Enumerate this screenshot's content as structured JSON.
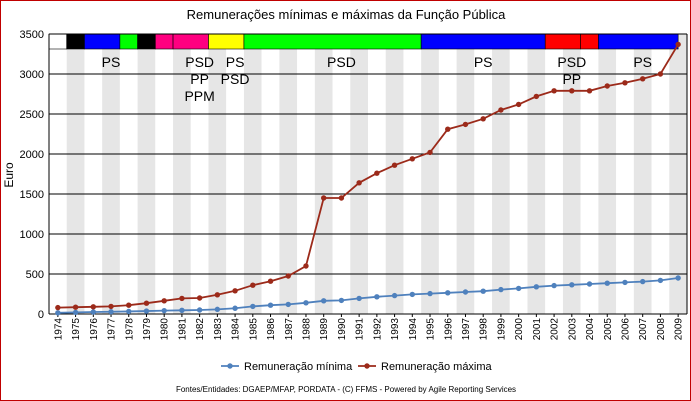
{
  "chart_data": {
    "type": "line",
    "title": "Remunerações mínimas e máximas da Função Pública",
    "ylabel": "Euro",
    "xlabel": "",
    "ylim": [
      0,
      3500
    ],
    "yticks": [
      "0",
      "500",
      "1000",
      "1500",
      "2000",
      "2500",
      "3000",
      "3500"
    ],
    "x": [
      "1974",
      "1975",
      "1976",
      "1977",
      "1978",
      "1979",
      "1980",
      "1981",
      "1982",
      "1983",
      "1984",
      "1985",
      "1986",
      "1987",
      "1988",
      "1989",
      "1990",
      "1991",
      "1992",
      "1993",
      "1994",
      "1995",
      "1996",
      "1997",
      "1998",
      "1999",
      "2000",
      "2001",
      "2002",
      "2003",
      "2004",
      "2005",
      "2006",
      "2007",
      "2008",
      "2009"
    ],
    "series": [
      {
        "name": "Remuneração mínima",
        "color": "#4f81bd",
        "values": [
          15,
          20,
          25,
          28,
          32,
          37,
          42,
          46,
          50,
          58,
          72,
          95,
          110,
          120,
          140,
          165,
          170,
          195,
          215,
          230,
          245,
          255,
          265,
          275,
          285,
          305,
          320,
          340,
          355,
          365,
          375,
          385,
          395,
          405,
          420,
          450
        ]
      },
      {
        "name": "Remuneração máxima",
        "color": "#9c2a1a",
        "values": [
          80,
          85,
          90,
          95,
          110,
          135,
          165,
          195,
          200,
          240,
          290,
          360,
          410,
          475,
          600,
          1450,
          1450,
          1640,
          1760,
          1860,
          1940,
          2020,
          2310,
          2370,
          2440,
          2550,
          2620,
          2720,
          2790,
          2790,
          2790,
          2850,
          2890,
          2940,
          3000,
          3370
        ]
      }
    ],
    "grid": "alternating vertical bands",
    "legend": "bottom",
    "party_bands": [
      {
        "start": "1974",
        "end": "1975",
        "color": "#ffffff"
      },
      {
        "start": "1975",
        "end": "1976",
        "color": "#000000"
      },
      {
        "start": "1976",
        "end": "1978",
        "color": "#0000ff"
      },
      {
        "start": "1978",
        "end": "1979",
        "color": "#00ff00"
      },
      {
        "start": "1979",
        "end": "1980",
        "color": "#000000"
      },
      {
        "start": "1980",
        "end": "1981",
        "color": "#ff0080"
      },
      {
        "start": "1981",
        "end": "1983",
        "color": "#ff0080"
      },
      {
        "start": "1983",
        "end": "1985",
        "color": "#ffff00"
      },
      {
        "start": "1985",
        "end": "1995",
        "color": "#00ff00"
      },
      {
        "start": "1995",
        "end": "2002",
        "color": "#0000ff"
      },
      {
        "start": "2002",
        "end": "2004",
        "color": "#ff0000"
      },
      {
        "start": "2004",
        "end": "2005",
        "color": "#ff0000"
      },
      {
        "start": "2005",
        "end": "2009.5",
        "color": "#0000ff"
      }
    ],
    "party_labels": [
      {
        "lines": [
          "PS"
        ],
        "x": "1977"
      },
      {
        "lines": [
          "PSD",
          "PP",
          "PPM"
        ],
        "x": "1982"
      },
      {
        "lines": [
          "PS",
          "PSD"
        ],
        "x": "1984"
      },
      {
        "lines": [
          "PSD"
        ],
        "x": "1990"
      },
      {
        "lines": [
          "PS"
        ],
        "x": "1998"
      },
      {
        "lines": [
          "PSD",
          "PP"
        ],
        "x": "2003"
      },
      {
        "lines": [
          "PS"
        ],
        "x": "2007"
      }
    ]
  },
  "footer": {
    "source": "Fontes/Entidades: DGAEP/MFAP, PORDATA - (C) FFMS - Powered by Agile Reporting Services"
  }
}
